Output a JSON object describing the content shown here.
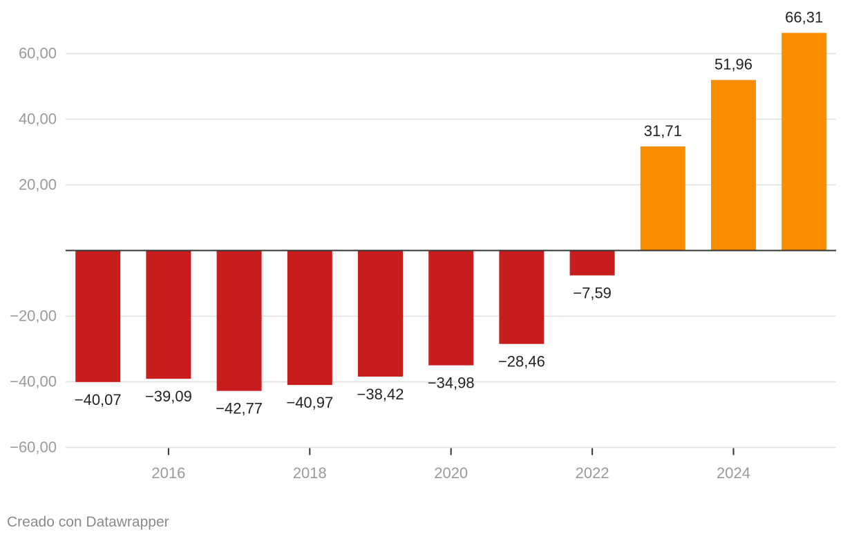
{
  "chart_data": {
    "type": "bar",
    "categories": [
      "2015",
      "2016",
      "2017",
      "2018",
      "2019",
      "2020",
      "2021",
      "2022",
      "2023",
      "2024",
      "2025"
    ],
    "values": [
      -40.07,
      -39.09,
      -42.77,
      -40.97,
      -38.42,
      -34.98,
      -28.46,
      -7.59,
      31.71,
      51.96,
      66.31
    ],
    "data_labels": [
      "−40,07",
      "−39,09",
      "−42,77",
      "−40,97",
      "−38,42",
      "−34,98",
      "−28,46",
      "−7,59",
      "31,71",
      "51,96",
      "66,31"
    ],
    "x_tick_labels": [
      "2016",
      "2018",
      "2020",
      "2022",
      "2024"
    ],
    "y_ticks": [
      60,
      40,
      20,
      -20,
      -40,
      -60
    ],
    "y_tick_labels": [
      "60,00",
      "40,00",
      "20,00",
      "−20,00",
      "−40,00",
      "−60,00"
    ],
    "ylim": [
      -60,
      70
    ],
    "grid": true,
    "colors": {
      "negative": "#c71e1d",
      "positive": "#fa8c00",
      "grid": "#e0e0e0",
      "axis": "#333333",
      "tick_text": "#9a9a9a",
      "label_text": "#222222"
    }
  },
  "footer": {
    "credit": "Creado con Datawrapper"
  }
}
